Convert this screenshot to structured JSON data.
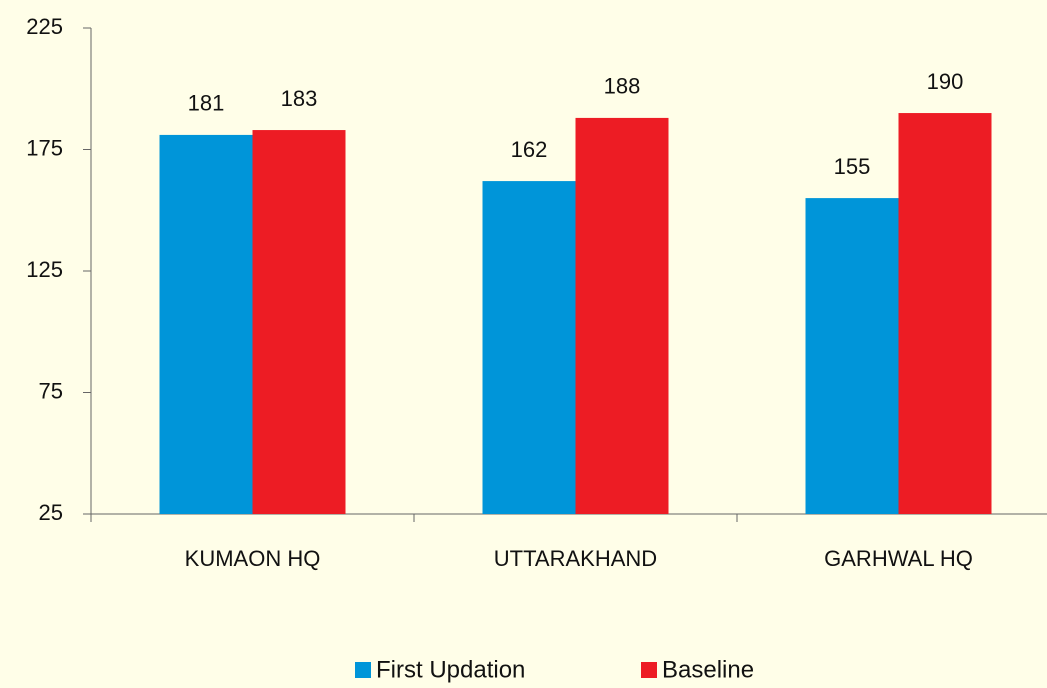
{
  "chart_data": {
    "type": "bar",
    "categories": [
      "KUMAON HQ",
      "UTTARAKHAND",
      "GARHWAL HQ"
    ],
    "series": [
      {
        "name": "First Updation",
        "color": "#0095d9",
        "values": [
          181,
          162,
          155
        ]
      },
      {
        "name": "Baseline",
        "color": "#ed1c24",
        "values": [
          183,
          188,
          190
        ]
      }
    ],
    "ylim": [
      25,
      225
    ],
    "yticks": [
      25,
      75,
      125,
      175,
      225
    ],
    "grid": false,
    "legend": "bottom"
  }
}
